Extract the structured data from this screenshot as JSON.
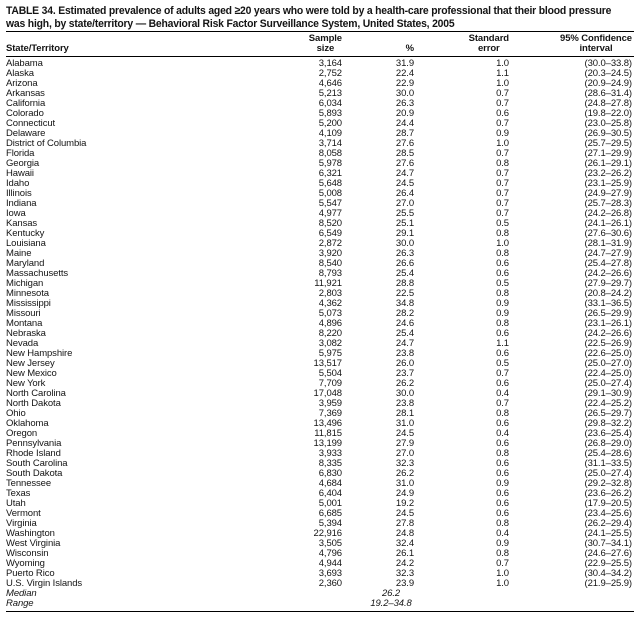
{
  "colors": {
    "background": "#ffffff",
    "text": "#141414",
    "rule": "#000000"
  },
  "title": {
    "line1": "TABLE 34. Estimated prevalence of adults aged ≥20 years who were told by a health-care professional that their blood pressure",
    "line2": "was high, by state/territory — Behavioral Risk Factor Surveillance System, United States, 2005"
  },
  "table": {
    "columns": {
      "state": {
        "line1": "",
        "line2": "State/Territory"
      },
      "sample": {
        "line1": "Sample",
        "line2": "size"
      },
      "pct": {
        "line1": "",
        "line2": "%"
      },
      "se": {
        "line1": "Standard",
        "line2": "error"
      },
      "ci": {
        "line1": "95% Confidence",
        "line2": "interval"
      }
    },
    "rows": [
      {
        "state": "Alabama",
        "sample": "3,164",
        "pct": "31.9",
        "se": "1.0",
        "ci": "(30.0–33.8)"
      },
      {
        "state": "Alaska",
        "sample": "2,752",
        "pct": "22.4",
        "se": "1.1",
        "ci": "(20.3–24.5)"
      },
      {
        "state": "Arizona",
        "sample": "4,646",
        "pct": "22.9",
        "se": "1.0",
        "ci": "(20.9–24.9)"
      },
      {
        "state": "Arkansas",
        "sample": "5,213",
        "pct": "30.0",
        "se": "0.7",
        "ci": "(28.6–31.4)"
      },
      {
        "state": "California",
        "sample": "6,034",
        "pct": "26.3",
        "se": "0.7",
        "ci": "(24.8–27.8)"
      },
      {
        "state": "Colorado",
        "sample": "5,893",
        "pct": "20.9",
        "se": "0.6",
        "ci": "(19.8–22.0)"
      },
      {
        "state": "Connecticut",
        "sample": "5,200",
        "pct": "24.4",
        "se": "0.7",
        "ci": "(23.0–25.8)"
      },
      {
        "state": "Delaware",
        "sample": "4,109",
        "pct": "28.7",
        "se": "0.9",
        "ci": "(26.9–30.5)"
      },
      {
        "state": "District of Columbia",
        "sample": "3,714",
        "pct": "27.6",
        "se": "1.0",
        "ci": "(25.7–29.5)"
      },
      {
        "state": "Florida",
        "sample": "8,058",
        "pct": "28.5",
        "se": "0.7",
        "ci": "(27.1–29.9)"
      },
      {
        "state": "Georgia",
        "sample": "5,978",
        "pct": "27.6",
        "se": "0.8",
        "ci": "(26.1–29.1)"
      },
      {
        "state": "Hawaii",
        "sample": "6,321",
        "pct": "24.7",
        "se": "0.7",
        "ci": "(23.2–26.2)"
      },
      {
        "state": "Idaho",
        "sample": "5,648",
        "pct": "24.5",
        "se": "0.7",
        "ci": "(23.1–25.9)"
      },
      {
        "state": "Illinois",
        "sample": "5,008",
        "pct": "26.4",
        "se": "0.7",
        "ci": "(24.9–27.9)"
      },
      {
        "state": "Indiana",
        "sample": "5,547",
        "pct": "27.0",
        "se": "0.7",
        "ci": "(25.7–28.3)"
      },
      {
        "state": "Iowa",
        "sample": "4,977",
        "pct": "25.5",
        "se": "0.7",
        "ci": "(24.2–26.8)"
      },
      {
        "state": "Kansas",
        "sample": "8,520",
        "pct": "25.1",
        "se": "0.5",
        "ci": "(24.1–26.1)"
      },
      {
        "state": "Kentucky",
        "sample": "6,549",
        "pct": "29.1",
        "se": "0.8",
        "ci": "(27.6–30.6)"
      },
      {
        "state": "Louisiana",
        "sample": "2,872",
        "pct": "30.0",
        "se": "1.0",
        "ci": "(28.1–31.9)"
      },
      {
        "state": "Maine",
        "sample": "3,920",
        "pct": "26.3",
        "se": "0.8",
        "ci": "(24.7–27.9)"
      },
      {
        "state": "Maryland",
        "sample": "8,540",
        "pct": "26.6",
        "se": "0.6",
        "ci": "(25.4–27.8)"
      },
      {
        "state": "Massachusetts",
        "sample": "8,793",
        "pct": "25.4",
        "se": "0.6",
        "ci": "(24.2–26.6)"
      },
      {
        "state": "Michigan",
        "sample": "11,921",
        "pct": "28.8",
        "se": "0.5",
        "ci": "(27.9–29.7)"
      },
      {
        "state": "Minnesota",
        "sample": "2,803",
        "pct": "22.5",
        "se": "0.8",
        "ci": "(20.8–24.2)"
      },
      {
        "state": "Mississippi",
        "sample": "4,362",
        "pct": "34.8",
        "se": "0.9",
        "ci": "(33.1–36.5)"
      },
      {
        "state": "Missouri",
        "sample": "5,073",
        "pct": "28.2",
        "se": "0.9",
        "ci": "(26.5–29.9)"
      },
      {
        "state": "Montana",
        "sample": "4,896",
        "pct": "24.6",
        "se": "0.8",
        "ci": "(23.1–26.1)"
      },
      {
        "state": "Nebraska",
        "sample": "8,220",
        "pct": "25.4",
        "se": "0.6",
        "ci": "(24.2–26.6)"
      },
      {
        "state": "Nevada",
        "sample": "3,082",
        "pct": "24.7",
        "se": "1.1",
        "ci": "(22.5–26.9)"
      },
      {
        "state": "New Hampshire",
        "sample": "5,975",
        "pct": "23.8",
        "se": "0.6",
        "ci": "(22.6–25.0)"
      },
      {
        "state": "New Jersey",
        "sample": "13,517",
        "pct": "26.0",
        "se": "0.5",
        "ci": "(25.0–27.0)"
      },
      {
        "state": "New Mexico",
        "sample": "5,504",
        "pct": "23.7",
        "se": "0.7",
        "ci": "(22.4–25.0)"
      },
      {
        "state": "New York",
        "sample": "7,709",
        "pct": "26.2",
        "se": "0.6",
        "ci": "(25.0–27.4)"
      },
      {
        "state": "North Carolina",
        "sample": "17,048",
        "pct": "30.0",
        "se": "0.4",
        "ci": "(29.1–30.9)"
      },
      {
        "state": "North Dakota",
        "sample": "3,959",
        "pct": "23.8",
        "se": "0.7",
        "ci": "(22.4–25.2)"
      },
      {
        "state": "Ohio",
        "sample": "7,369",
        "pct": "28.1",
        "se": "0.8",
        "ci": "(26.5–29.7)"
      },
      {
        "state": "Oklahoma",
        "sample": "13,496",
        "pct": "31.0",
        "se": "0.6",
        "ci": "(29.8–32.2)"
      },
      {
        "state": "Oregon",
        "sample": "11,815",
        "pct": "24.5",
        "se": "0.4",
        "ci": "(23.6–25.4)"
      },
      {
        "state": "Pennsylvania",
        "sample": "13,199",
        "pct": "27.9",
        "se": "0.6",
        "ci": "(26.8–29.0)"
      },
      {
        "state": "Rhode Island",
        "sample": "3,933",
        "pct": "27.0",
        "se": "0.8",
        "ci": "(25.4–28.6)"
      },
      {
        "state": "South Carolina",
        "sample": "8,335",
        "pct": "32.3",
        "se": "0.6",
        "ci": "(31.1–33.5)"
      },
      {
        "state": "South Dakota",
        "sample": "6,830",
        "pct": "26.2",
        "se": "0.6",
        "ci": "(25.0–27.4)"
      },
      {
        "state": "Tennessee",
        "sample": "4,684",
        "pct": "31.0",
        "se": "0.9",
        "ci": "(29.2–32.8)"
      },
      {
        "state": "Texas",
        "sample": "6,404",
        "pct": "24.9",
        "se": "0.6",
        "ci": "(23.6–26.2)"
      },
      {
        "state": "Utah",
        "sample": "5,001",
        "pct": "19.2",
        "se": "0.6",
        "ci": "(17.9–20.5)"
      },
      {
        "state": "Vermont",
        "sample": "6,685",
        "pct": "24.5",
        "se": "0.6",
        "ci": "(23.4–25.6)"
      },
      {
        "state": "Virginia",
        "sample": "5,394",
        "pct": "27.8",
        "se": "0.8",
        "ci": "(26.2–29.4)"
      },
      {
        "state": "Washington",
        "sample": "22,916",
        "pct": "24.8",
        "se": "0.4",
        "ci": "(24.1–25.5)"
      },
      {
        "state": "West Virginia",
        "sample": "3,505",
        "pct": "32.4",
        "se": "0.9",
        "ci": "(30.7–34.1)"
      },
      {
        "state": "Wisconsin",
        "sample": "4,796",
        "pct": "26.1",
        "se": "0.8",
        "ci": "(24.6–27.6)"
      },
      {
        "state": "Wyoming",
        "sample": "4,944",
        "pct": "24.2",
        "se": "0.7",
        "ci": "(22.9–25.5)"
      },
      {
        "state": "Puerto Rico",
        "sample": "3,693",
        "pct": "32.3",
        "se": "1.0",
        "ci": "(30.4–34.2)"
      },
      {
        "state": "U.S. Virgin Islands",
        "sample": "2,360",
        "pct": "23.9",
        "se": "1.0",
        "ci": "(21.9–25.9)"
      }
    ],
    "summary_rows": [
      {
        "state": "Median",
        "sample": "",
        "pct": "26.2",
        "se": "",
        "ci": ""
      },
      {
        "state": "Range",
        "sample": "",
        "pct": "19.2–34.8",
        "se": "",
        "ci": ""
      }
    ]
  }
}
